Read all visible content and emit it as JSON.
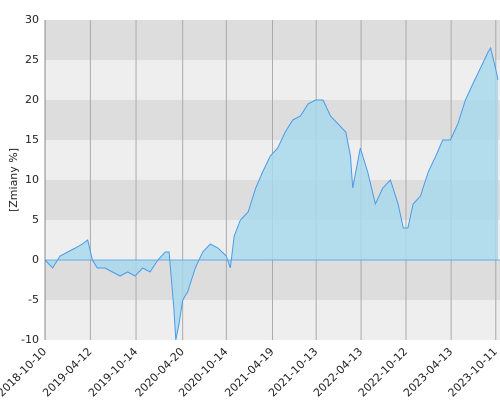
{
  "chart_data": {
    "type": "area",
    "y_label": "[Zmiany %]",
    "x": [
      "2018-10-10",
      "2018-11-10",
      "2018-12-10",
      "2019-01-10",
      "2019-02-10",
      "2019-03-10",
      "2019-04-01",
      "2019-04-20",
      "2019-05-10",
      "2019-06-10",
      "2019-07-10",
      "2019-08-10",
      "2019-09-10",
      "2019-10-10",
      "2019-11-10",
      "2019-12-10",
      "2020-01-10",
      "2020-02-10",
      "2020-02-25",
      "2020-03-15",
      "2020-03-23",
      "2020-04-05",
      "2020-04-20",
      "2020-05-10",
      "2020-06-10",
      "2020-07-10",
      "2020-08-10",
      "2020-09-10",
      "2020-10-14",
      "2020-10-30",
      "2020-11-15",
      "2020-12-10",
      "2021-01-10",
      "2021-02-10",
      "2021-03-10",
      "2021-04-10",
      "2021-05-10",
      "2021-06-10",
      "2021-07-10",
      "2021-08-10",
      "2021-09-10",
      "2021-10-10",
      "2021-11-10",
      "2021-12-10",
      "2022-01-10",
      "2022-02-10",
      "2022-03-01",
      "2022-03-10",
      "2022-04-10",
      "2022-05-10",
      "2022-06-10",
      "2022-07-10",
      "2022-08-10",
      "2022-09-10",
      "2022-10-01",
      "2022-10-20",
      "2022-11-10",
      "2022-12-10",
      "2023-01-10",
      "2023-02-10",
      "2023-03-10",
      "2023-04-10",
      "2023-05-10",
      "2023-06-10",
      "2023-07-10",
      "2023-08-10",
      "2023-09-10",
      "2023-09-20",
      "2023-10-10",
      "2023-10-20"
    ],
    "values": [
      0,
      -1,
      0.5,
      1,
      1.5,
      2,
      2.5,
      0,
      -1,
      -1,
      -1.5,
      -2,
      -1.5,
      -2,
      -1,
      -1.5,
      0,
      1,
      1,
      -6,
      -10,
      -8,
      -5,
      -4,
      -1,
      1,
      2,
      1.5,
      0.5,
      -1,
      3,
      5,
      6,
      9,
      11,
      13,
      14,
      16,
      17.5,
      18,
      19.5,
      20,
      20,
      18,
      17,
      16,
      13,
      9,
      14,
      11,
      7,
      9,
      10,
      7,
      4,
      4,
      7,
      8,
      11,
      13,
      15,
      15,
      17,
      20,
      22,
      24,
      26,
      26.5,
      24,
      22.5
    ],
    "line_color": "#4a9be8",
    "fill_color": "#a8d8ec",
    "xlim": [
      "2018-10-10",
      "2023-10-20"
    ],
    "xticks": [
      "2018-10-10",
      "2019-04-12",
      "2019-10-14",
      "2020-04-20",
      "2020-10-14",
      "2021-04-19",
      "2021-10-13",
      "2022-04-13",
      "2022-10-12",
      "2023-04-13",
      "2023-10-11"
    ],
    "ylim": [
      -10,
      30
    ],
    "yticks": [
      -10,
      -5,
      0,
      5,
      10,
      15,
      20,
      25,
      30
    ],
    "grid": true
  }
}
